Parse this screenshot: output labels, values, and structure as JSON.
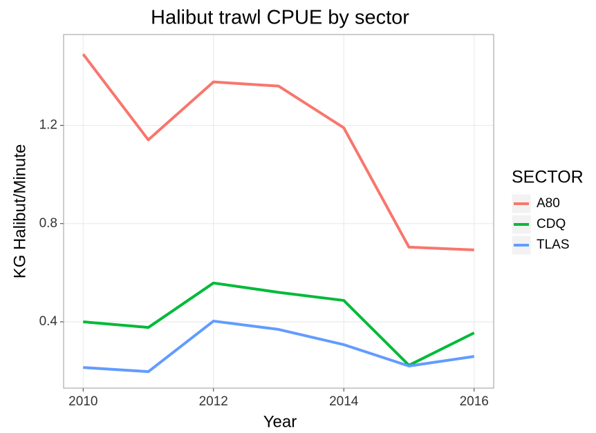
{
  "chart_data": {
    "type": "line",
    "title": "Halibut trawl CPUE by sector",
    "x_label": "Year",
    "y_label": "KG Halibut/Minute",
    "legend_title": "SECTOR",
    "x": [
      2010,
      2011,
      2012,
      2013,
      2014,
      2015,
      2016
    ],
    "series": [
      {
        "name": "A80",
        "color": "#f8766d",
        "values": [
          1.49,
          1.141,
          1.377,
          1.36,
          1.19,
          0.704,
          0.693
        ]
      },
      {
        "name": "CDQ",
        "color": "#00ba38",
        "values": [
          0.4,
          0.377,
          0.558,
          0.52,
          0.487,
          0.223,
          0.355
        ]
      },
      {
        "name": "TLAS",
        "color": "#619cff",
        "values": [
          0.214,
          0.197,
          0.403,
          0.369,
          0.307,
          0.22,
          0.259
        ]
      }
    ],
    "xlim": [
      2009.7,
      2016.3
    ],
    "xticks": [
      2010,
      2012,
      2014,
      2016
    ],
    "ylim": [
      0.13,
      1.57
    ],
    "yticks": [
      0.4,
      0.8,
      1.2
    ],
    "grid": true,
    "legend": "right"
  }
}
